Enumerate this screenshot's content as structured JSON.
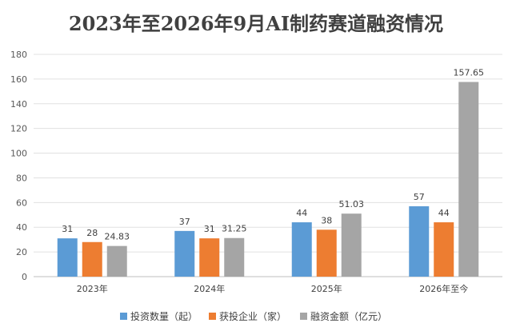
{
  "chart_data": {
    "type": "bar",
    "title": "2023年至2026年9月AI制药赛道融资情况",
    "categories": [
      "2023年",
      "2024年",
      "2025年",
      "2026年至今"
    ],
    "series": [
      {
        "name": "投资数量（起）",
        "values": [
          31,
          37,
          44,
          57
        ],
        "labels": [
          "31",
          "37",
          "44",
          "57"
        ],
        "color": "#5b9bd5"
      },
      {
        "name": "获投企业（家）",
        "values": [
          28,
          31,
          38,
          44
        ],
        "labels": [
          "28",
          "31",
          "38",
          "44"
        ],
        "color": "#ed7d31"
      },
      {
        "name": "融资金额（亿元）",
        "values": [
          24.83,
          31.25,
          51.03,
          157.65
        ],
        "labels": [
          "24.83",
          "31.25",
          "51.03",
          "157.65"
        ],
        "color": "#a5a5a5"
      }
    ],
    "ylim": [
      0,
      180
    ],
    "yticks": [
      0,
      20,
      40,
      60,
      80,
      100,
      120,
      140,
      160,
      180
    ],
    "grid": true,
    "legend_position": "bottom"
  }
}
